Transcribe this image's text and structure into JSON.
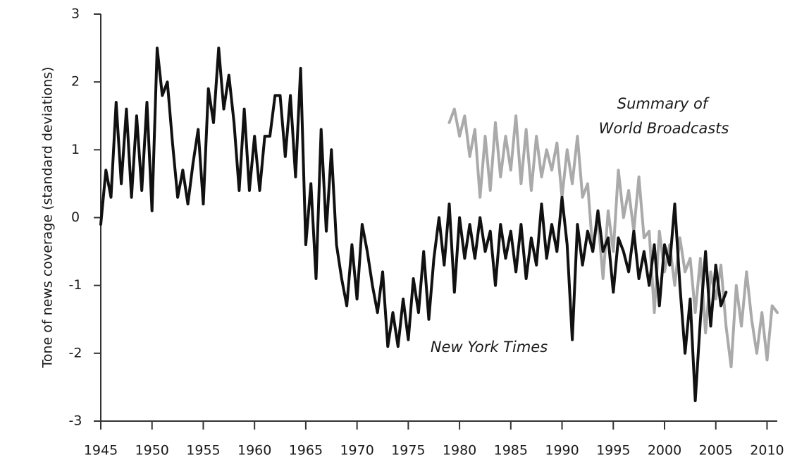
{
  "chart_data": {
    "type": "line",
    "ylabel": "Tone of news coverage (standard deviations)",
    "annotations": [
      "Summary of",
      "World Broadcasts",
      "New York Times"
    ],
    "xlim": [
      1945,
      2011
    ],
    "xticks": [
      1945,
      1950,
      1955,
      1960,
      1965,
      1970,
      1975,
      1980,
      1985,
      1990,
      1995,
      2000,
      2005,
      2010
    ],
    "ylim": [
      -3,
      3
    ],
    "yticks": [
      3,
      2,
      1,
      0,
      -1,
      -2,
      -3
    ],
    "grid": false,
    "series": [
      {
        "name": "Summary of World Broadcasts",
        "color": "#aaaaaa",
        "x": [
          1979,
          1979.5,
          1980,
          1980.5,
          1981,
          1981.5,
          1982,
          1982.5,
          1983,
          1983.5,
          1984,
          1984.5,
          1985,
          1985.5,
          1986,
          1986.5,
          1987,
          1987.5,
          1988,
          1988.5,
          1989,
          1989.5,
          1990,
          1990.5,
          1991,
          1991.5,
          1992,
          1992.5,
          1993,
          1993.5,
          1994,
          1994.5,
          1995,
          1995.5,
          1996,
          1996.5,
          1997,
          1997.5,
          1998,
          1998.5,
          1999,
          1999.5,
          2000,
          2000.5,
          2001,
          2001.5,
          2002,
          2002.5,
          2003,
          2003.5,
          2004,
          2004.5,
          2005,
          2005.5,
          2006,
          2006.5,
          2007,
          2007.5,
          2008,
          2008.5,
          2009,
          2009.5,
          2010,
          2010.5,
          2011
        ],
        "values": [
          1.4,
          1.6,
          1.2,
          1.5,
          0.9,
          1.3,
          0.3,
          1.2,
          0.4,
          1.4,
          0.6,
          1.2,
          0.7,
          1.5,
          0.5,
          1.3,
          0.4,
          1.2,
          0.6,
          1.0,
          0.7,
          1.1,
          0.3,
          1.0,
          0.5,
          1.2,
          0.3,
          0.5,
          -0.5,
          0.0,
          -0.9,
          0.1,
          -0.5,
          0.7,
          0.0,
          0.4,
          -0.2,
          0.6,
          -0.3,
          -0.2,
          -1.4,
          -0.2,
          -0.8,
          -0.4,
          -1.0,
          -0.3,
          -0.8,
          -0.6,
          -1.4,
          -0.6,
          -1.7,
          -0.8,
          -1.2,
          -0.7,
          -1.6,
          -2.2,
          -1.0,
          -1.6,
          -0.8,
          -1.5,
          -2.0,
          -1.4,
          -2.1,
          -1.3,
          -1.4
        ]
      },
      {
        "name": "New York Times",
        "color": "#111111",
        "x": [
          1945,
          1945.5,
          1946,
          1946.5,
          1947,
          1947.5,
          1948,
          1948.5,
          1949,
          1949.5,
          1950,
          1950.5,
          1951,
          1951.5,
          1952,
          1952.5,
          1953,
          1953.5,
          1954,
          1954.5,
          1955,
          1955.5,
          1956,
          1956.5,
          1957,
          1957.5,
          1958,
          1958.5,
          1959,
          1959.5,
          1960,
          1960.5,
          1961,
          1961.5,
          1962,
          1962.5,
          1963,
          1963.5,
          1964,
          1964.5,
          1965,
          1965.5,
          1966,
          1966.5,
          1967,
          1967.5,
          1968,
          1968.5,
          1969,
          1969.5,
          1970,
          1970.5,
          1971,
          1971.5,
          1972,
          1972.5,
          1973,
          1973.5,
          1974,
          1974.5,
          1975,
          1975.5,
          1976,
          1976.5,
          1977,
          1977.5,
          1978,
          1978.5,
          1979,
          1979.5,
          1980,
          1980.5,
          1981,
          1981.5,
          1982,
          1982.5,
          1983,
          1983.5,
          1984,
          1984.5,
          1985,
          1985.5,
          1986,
          1986.5,
          1987,
          1987.5,
          1988,
          1988.5,
          1989,
          1989.5,
          1990,
          1990.5,
          1991,
          1991.5,
          1992,
          1992.5,
          1993,
          1993.5,
          1994,
          1994.5,
          1995,
          1995.5,
          1996,
          1996.5,
          1997,
          1997.5,
          1998,
          1998.5,
          1999,
          1999.5,
          2000,
          2000.5,
          2001,
          2001.5,
          2002,
          2002.5,
          2003,
          2003.5,
          2004,
          2004.5,
          2005,
          2005.5,
          2006
        ],
        "values": [
          -0.1,
          0.7,
          0.3,
          1.7,
          0.5,
          1.6,
          0.3,
          1.5,
          0.4,
          1.7,
          0.1,
          2.5,
          1.8,
          2.0,
          1.1,
          0.3,
          0.7,
          0.2,
          0.8,
          1.3,
          0.2,
          1.9,
          1.4,
          2.5,
          1.6,
          2.1,
          1.4,
          0.4,
          1.6,
          0.4,
          1.2,
          0.4,
          1.2,
          1.2,
          1.8,
          1.8,
          0.9,
          1.8,
          0.6,
          2.2,
          -0.4,
          0.5,
          -0.9,
          1.3,
          -0.2,
          1.0,
          -0.4,
          -0.9,
          -1.3,
          -0.4,
          -1.2,
          -0.1,
          -0.5,
          -1.0,
          -1.4,
          -0.8,
          -1.9,
          -1.4,
          -1.9,
          -1.2,
          -1.8,
          -0.9,
          -1.4,
          -0.5,
          -1.5,
          -0.6,
          0.0,
          -0.7,
          0.2,
          -1.1,
          0.0,
          -0.6,
          -0.1,
          -0.6,
          0.0,
          -0.5,
          -0.2,
          -1.0,
          -0.1,
          -0.6,
          -0.2,
          -0.8,
          -0.1,
          -0.9,
          -0.3,
          -0.7,
          0.2,
          -0.6,
          -0.1,
          -0.5,
          0.3,
          -0.4,
          -1.8,
          -0.1,
          -0.7,
          -0.2,
          -0.5,
          0.1,
          -0.5,
          -0.3,
          -1.1,
          -0.3,
          -0.5,
          -0.8,
          -0.2,
          -0.9,
          -0.5,
          -1.0,
          -0.4,
          -1.3,
          -0.4,
          -0.7,
          0.2,
          -1.0,
          -2.0,
          -1.2,
          -2.7,
          -1.5,
          -0.5,
          -1.6,
          -0.7,
          -1.3,
          -1.1
        ]
      }
    ]
  }
}
